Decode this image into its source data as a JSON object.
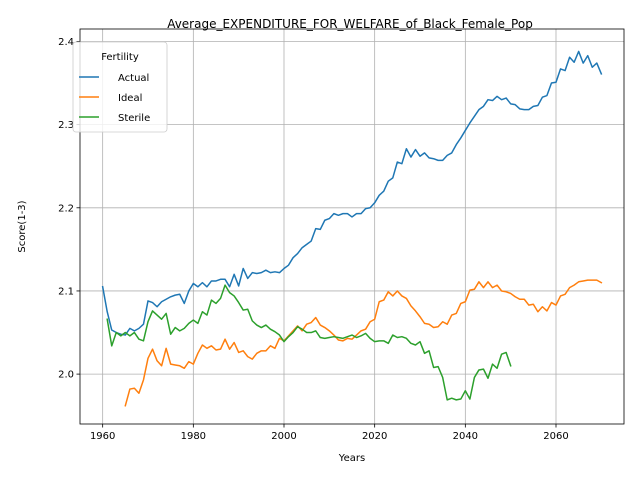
{
  "chart_data": {
    "type": "line",
    "title": "Average_EXPENDITURE_FOR_WELFARE_of_Black_Female_Pop",
    "xlabel": "Years",
    "ylabel": "Score(1-3)",
    "xlim": [
      1955,
      2075
    ],
    "ylim": [
      1.94,
      2.415
    ],
    "x_ticks": [
      1960,
      1980,
      2000,
      2020,
      2040,
      2060
    ],
    "x_tick_labels": [
      "1960",
      "1980",
      "2000",
      "2020",
      "2040",
      "2060"
    ],
    "y_ticks": [
      2.0,
      2.1,
      2.2,
      2.3,
      2.4
    ],
    "y_tick_labels": [
      "2.0",
      "2.1",
      "2.2",
      "2.3",
      "2.4"
    ],
    "grid": true,
    "legend": {
      "title": "Fertility",
      "placement": "top-left"
    },
    "series": [
      {
        "name": "Actual",
        "color": "#1f77b4",
        "points": [
          [
            1960,
            2.105
          ],
          [
            1961,
            2.075
          ],
          [
            1962,
            2.053
          ],
          [
            1963,
            2.05
          ],
          [
            1964,
            2.048
          ],
          [
            1965,
            2.047
          ],
          [
            1966,
            2.055
          ],
          [
            1967,
            2.052
          ],
          [
            1968,
            2.055
          ],
          [
            1969,
            2.06
          ],
          [
            1970,
            2.088
          ],
          [
            1971,
            2.086
          ],
          [
            1972,
            2.081
          ],
          [
            1973,
            2.087
          ],
          [
            1974,
            2.09
          ],
          [
            1975,
            2.093
          ],
          [
            1976,
            2.095
          ],
          [
            1977,
            2.096
          ],
          [
            1978,
            2.085
          ],
          [
            1979,
            2.1
          ],
          [
            1980,
            2.109
          ],
          [
            1981,
            2.105
          ],
          [
            1982,
            2.11
          ],
          [
            1983,
            2.105
          ],
          [
            1984,
            2.112
          ],
          [
            1985,
            2.112
          ],
          [
            1986,
            2.114
          ],
          [
            1987,
            2.114
          ],
          [
            1988,
            2.105
          ],
          [
            1989,
            2.12
          ],
          [
            1990,
            2.106
          ],
          [
            1991,
            2.127
          ],
          [
            1992,
            2.115
          ],
          [
            1993,
            2.122
          ],
          [
            1994,
            2.121
          ],
          [
            1995,
            2.122
          ],
          [
            1996,
            2.125
          ],
          [
            1997,
            2.122
          ],
          [
            1998,
            2.123
          ],
          [
            1999,
            2.122
          ],
          [
            2000,
            2.127
          ],
          [
            2001,
            2.131
          ],
          [
            2002,
            2.14
          ],
          [
            2003,
            2.145
          ],
          [
            2004,
            2.152
          ],
          [
            2005,
            2.156
          ],
          [
            2006,
            2.16
          ],
          [
            2007,
            2.175
          ],
          [
            2008,
            2.174
          ],
          [
            2009,
            2.185
          ],
          [
            2010,
            2.187
          ],
          [
            2011,
            2.193
          ],
          [
            2012,
            2.191
          ],
          [
            2013,
            2.193
          ],
          [
            2014,
            2.193
          ],
          [
            2015,
            2.189
          ],
          [
            2016,
            2.193
          ],
          [
            2017,
            2.193
          ],
          [
            2018,
            2.199
          ],
          [
            2019,
            2.2
          ],
          [
            2020,
            2.206
          ],
          [
            2021,
            2.215
          ],
          [
            2022,
            2.22
          ],
          [
            2023,
            2.232
          ],
          [
            2024,
            2.236
          ],
          [
            2025,
            2.255
          ],
          [
            2026,
            2.253
          ],
          [
            2027,
            2.271
          ],
          [
            2028,
            2.261
          ],
          [
            2029,
            2.27
          ],
          [
            2030,
            2.262
          ],
          [
            2031,
            2.266
          ],
          [
            2032,
            2.26
          ],
          [
            2033,
            2.259
          ],
          [
            2034,
            2.257
          ],
          [
            2035,
            2.257
          ],
          [
            2036,
            2.263
          ],
          [
            2037,
            2.266
          ],
          [
            2038,
            2.276
          ],
          [
            2039,
            2.284
          ],
          [
            2040,
            2.293
          ],
          [
            2041,
            2.302
          ],
          [
            2042,
            2.31
          ],
          [
            2043,
            2.318
          ],
          [
            2044,
            2.322
          ],
          [
            2045,
            2.33
          ],
          [
            2046,
            2.329
          ],
          [
            2047,
            2.334
          ],
          [
            2048,
            2.33
          ],
          [
            2049,
            2.332
          ],
          [
            2050,
            2.325
          ],
          [
            2051,
            2.324
          ],
          [
            2052,
            2.319
          ],
          [
            2053,
            2.318
          ],
          [
            2054,
            2.318
          ],
          [
            2055,
            2.322
          ],
          [
            2056,
            2.323
          ],
          [
            2057,
            2.333
          ],
          [
            2058,
            2.335
          ],
          [
            2059,
            2.35
          ],
          [
            2060,
            2.351
          ],
          [
            2061,
            2.367
          ],
          [
            2062,
            2.365
          ],
          [
            2063,
            2.381
          ],
          [
            2064,
            2.375
          ],
          [
            2065,
            2.388
          ],
          [
            2066,
            2.374
          ],
          [
            2067,
            2.383
          ],
          [
            2068,
            2.369
          ],
          [
            2069,
            2.374
          ],
          [
            2070,
            2.361
          ]
        ]
      },
      {
        "name": "Ideal",
        "color": "#ff7f0e",
        "points": [
          [
            1965,
            1.962
          ],
          [
            1966,
            1.982
          ],
          [
            1967,
            1.983
          ],
          [
            1968,
            1.977
          ],
          [
            1969,
            1.993
          ],
          [
            1970,
            2.019
          ],
          [
            1971,
            2.03
          ],
          [
            1972,
            2.016
          ],
          [
            1973,
            2.01
          ],
          [
            1974,
            2.031
          ],
          [
            1975,
            2.012
          ],
          [
            1976,
            2.011
          ],
          [
            1977,
            2.01
          ],
          [
            1978,
            2.007
          ],
          [
            1979,
            2.015
          ],
          [
            1980,
            2.012
          ],
          [
            1981,
            2.025
          ],
          [
            1982,
            2.035
          ],
          [
            1983,
            2.031
          ],
          [
            1984,
            2.034
          ],
          [
            1985,
            2.029
          ],
          [
            1986,
            2.03
          ],
          [
            1987,
            2.042
          ],
          [
            1988,
            2.03
          ],
          [
            1989,
            2.038
          ],
          [
            1990,
            2.026
          ],
          [
            1991,
            2.028
          ],
          [
            1992,
            2.021
          ],
          [
            1993,
            2.018
          ],
          [
            1994,
            2.025
          ],
          [
            1995,
            2.028
          ],
          [
            1996,
            2.028
          ],
          [
            1997,
            2.034
          ],
          [
            1998,
            2.031
          ],
          [
            1999,
            2.043
          ],
          [
            2000,
            2.04
          ],
          [
            2001,
            2.046
          ],
          [
            2002,
            2.052
          ],
          [
            2003,
            2.058
          ],
          [
            2004,
            2.052
          ],
          [
            2005,
            2.06
          ],
          [
            2006,
            2.062
          ],
          [
            2007,
            2.068
          ],
          [
            2008,
            2.059
          ],
          [
            2009,
            2.056
          ],
          [
            2010,
            2.052
          ],
          [
            2011,
            2.047
          ],
          [
            2012,
            2.041
          ],
          [
            2013,
            2.04
          ],
          [
            2014,
            2.043
          ],
          [
            2015,
            2.042
          ],
          [
            2016,
            2.047
          ],
          [
            2017,
            2.052
          ],
          [
            2018,
            2.054
          ],
          [
            2019,
            2.063
          ],
          [
            2020,
            2.066
          ],
          [
            2021,
            2.087
          ],
          [
            2022,
            2.089
          ],
          [
            2023,
            2.099
          ],
          [
            2024,
            2.094
          ],
          [
            2025,
            2.1
          ],
          [
            2026,
            2.094
          ],
          [
            2027,
            2.091
          ],
          [
            2028,
            2.082
          ],
          [
            2029,
            2.076
          ],
          [
            2030,
            2.069
          ],
          [
            2031,
            2.061
          ],
          [
            2032,
            2.06
          ],
          [
            2033,
            2.056
          ],
          [
            2034,
            2.057
          ],
          [
            2035,
            2.063
          ],
          [
            2036,
            2.06
          ],
          [
            2037,
            2.071
          ],
          [
            2038,
            2.073
          ],
          [
            2039,
            2.085
          ],
          [
            2040,
            2.087
          ],
          [
            2041,
            2.101
          ],
          [
            2042,
            2.102
          ],
          [
            2043,
            2.111
          ],
          [
            2044,
            2.104
          ],
          [
            2045,
            2.111
          ],
          [
            2046,
            2.104
          ],
          [
            2047,
            2.107
          ],
          [
            2048,
            2.1
          ],
          [
            2049,
            2.099
          ],
          [
            2050,
            2.097
          ],
          [
            2051,
            2.093
          ],
          [
            2052,
            2.09
          ],
          [
            2053,
            2.09
          ],
          [
            2054,
            2.083
          ],
          [
            2055,
            2.084
          ],
          [
            2056,
            2.075
          ],
          [
            2057,
            2.081
          ],
          [
            2058,
            2.076
          ],
          [
            2059,
            2.086
          ],
          [
            2060,
            2.083
          ],
          [
            2061,
            2.094
          ],
          [
            2062,
            2.096
          ],
          [
            2063,
            2.104
          ],
          [
            2064,
            2.107
          ],
          [
            2065,
            2.111
          ],
          [
            2066,
            2.112
          ],
          [
            2067,
            2.113
          ],
          [
            2068,
            2.113
          ],
          [
            2069,
            2.113
          ],
          [
            2070,
            2.11
          ]
        ]
      },
      {
        "name": "Sterile",
        "color": "#2ca02c",
        "points": [
          [
            1961,
            2.066
          ],
          [
            1962,
            2.034
          ],
          [
            1963,
            2.05
          ],
          [
            1964,
            2.046
          ],
          [
            1965,
            2.05
          ],
          [
            1966,
            2.046
          ],
          [
            1967,
            2.05
          ],
          [
            1968,
            2.042
          ],
          [
            1969,
            2.04
          ],
          [
            1970,
            2.063
          ],
          [
            1971,
            2.076
          ],
          [
            1972,
            2.071
          ],
          [
            1973,
            2.066
          ],
          [
            1974,
            2.073
          ],
          [
            1975,
            2.048
          ],
          [
            1976,
            2.056
          ],
          [
            1977,
            2.052
          ],
          [
            1978,
            2.055
          ],
          [
            1979,
            2.061
          ],
          [
            1980,
            2.065
          ],
          [
            1981,
            2.061
          ],
          [
            1982,
            2.075
          ],
          [
            1983,
            2.071
          ],
          [
            1984,
            2.089
          ],
          [
            1985,
            2.085
          ],
          [
            1986,
            2.091
          ],
          [
            1987,
            2.107
          ],
          [
            1988,
            2.098
          ],
          [
            1989,
            2.094
          ],
          [
            1990,
            2.086
          ],
          [
            1991,
            2.077
          ],
          [
            1992,
            2.078
          ],
          [
            1993,
            2.064
          ],
          [
            1994,
            2.059
          ],
          [
            1995,
            2.056
          ],
          [
            1996,
            2.059
          ],
          [
            1997,
            2.054
          ],
          [
            1998,
            2.051
          ],
          [
            1999,
            2.047
          ],
          [
            2000,
            2.039
          ],
          [
            2001,
            2.045
          ],
          [
            2002,
            2.05
          ],
          [
            2003,
            2.057
          ],
          [
            2004,
            2.054
          ],
          [
            2005,
            2.05
          ],
          [
            2006,
            2.05
          ],
          [
            2007,
            2.052
          ],
          [
            2008,
            2.044
          ],
          [
            2009,
            2.043
          ],
          [
            2010,
            2.044
          ],
          [
            2011,
            2.045
          ],
          [
            2012,
            2.044
          ],
          [
            2013,
            2.043
          ],
          [
            2014,
            2.045
          ],
          [
            2015,
            2.047
          ],
          [
            2016,
            2.044
          ],
          [
            2017,
            2.046
          ],
          [
            2018,
            2.049
          ],
          [
            2019,
            2.043
          ],
          [
            2020,
            2.039
          ],
          [
            2021,
            2.04
          ],
          [
            2022,
            2.04
          ],
          [
            2023,
            2.037
          ],
          [
            2024,
            2.047
          ],
          [
            2025,
            2.044
          ],
          [
            2026,
            2.045
          ],
          [
            2027,
            2.043
          ],
          [
            2028,
            2.037
          ],
          [
            2029,
            2.035
          ],
          [
            2030,
            2.039
          ],
          [
            2031,
            2.025
          ],
          [
            2032,
            2.028
          ],
          [
            2033,
            2.008
          ],
          [
            2034,
            2.009
          ],
          [
            2035,
            1.996
          ],
          [
            2036,
            1.969
          ],
          [
            2037,
            1.971
          ],
          [
            2038,
            1.969
          ],
          [
            2039,
            1.97
          ],
          [
            2040,
            1.98
          ],
          [
            2041,
            1.97
          ],
          [
            2042,
            1.996
          ],
          [
            2043,
            2.005
          ],
          [
            2044,
            2.006
          ],
          [
            2045,
            1.995
          ],
          [
            2046,
            2.012
          ],
          [
            2047,
            2.007
          ],
          [
            2048,
            2.024
          ],
          [
            2049,
            2.026
          ],
          [
            2050,
            2.01
          ]
        ]
      }
    ]
  }
}
